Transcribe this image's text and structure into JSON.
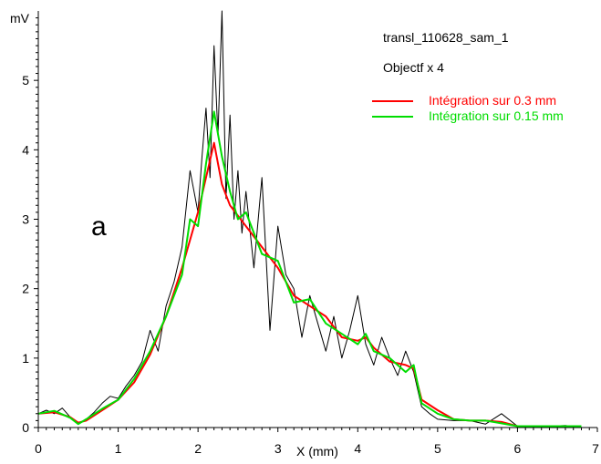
{
  "chart_data": {
    "type": "line",
    "title": "",
    "xlabel": "X (mm)",
    "ylabel": "mV",
    "xlim": [
      0,
      7
    ],
    "ylim": [
      0,
      6
    ],
    "x_ticks": [
      "0",
      "1",
      "2",
      "3",
      "4",
      "5",
      "6",
      "7"
    ],
    "y_ticks": [
      "0",
      "1",
      "2",
      "3",
      "4",
      "5"
    ],
    "grid": false,
    "legend_position": "top-right",
    "annotations": {
      "file_label": "transl_110628_sam_1",
      "objective_label": "Objectf x 4",
      "panel_letter": "a"
    },
    "colors": {
      "raw": "#000000",
      "smooth_03": "#ff0000",
      "smooth_015": "#00dd00",
      "axis": "#000000"
    },
    "series": [
      {
        "key": "raw",
        "color": "#000000",
        "x": [
          0.0,
          0.1,
          0.2,
          0.3,
          0.4,
          0.5,
          0.6,
          0.7,
          0.8,
          0.9,
          1.0,
          1.1,
          1.2,
          1.3,
          1.4,
          1.5,
          1.6,
          1.7,
          1.8,
          1.9,
          2.0,
          2.05,
          2.1,
          2.15,
          2.2,
          2.25,
          2.3,
          2.35,
          2.4,
          2.45,
          2.5,
          2.55,
          2.6,
          2.7,
          2.8,
          2.9,
          3.0,
          3.1,
          3.2,
          3.3,
          3.4,
          3.5,
          3.6,
          3.7,
          3.8,
          3.9,
          4.0,
          4.1,
          4.2,
          4.3,
          4.4,
          4.5,
          4.6,
          4.7,
          4.8,
          4.9,
          5.0,
          5.2,
          5.4,
          5.6,
          5.8,
          6.0,
          6.2,
          6.4,
          6.6,
          6.8
        ],
        "values": [
          0.2,
          0.25,
          0.2,
          0.28,
          0.15,
          0.05,
          0.12,
          0.22,
          0.35,
          0.45,
          0.42,
          0.6,
          0.75,
          0.95,
          1.4,
          1.1,
          1.75,
          2.1,
          2.6,
          3.7,
          3.1,
          3.9,
          4.6,
          3.6,
          5.5,
          4.2,
          6.0,
          3.3,
          4.5,
          3.0,
          3.7,
          2.8,
          3.4,
          2.3,
          3.6,
          1.4,
          2.9,
          2.2,
          2.0,
          1.3,
          1.9,
          1.5,
          1.1,
          1.6,
          1.0,
          1.4,
          1.9,
          1.2,
          0.9,
          1.3,
          1.0,
          0.75,
          1.1,
          0.8,
          0.3,
          0.2,
          0.12,
          0.1,
          0.1,
          0.05,
          0.2,
          0.02,
          0.02,
          0.02,
          0.03,
          0.0
        ]
      },
      {
        "name": "Intégration sur 0.3 mm",
        "key": "smooth_03",
        "color": "#ff0000",
        "x": [
          0.0,
          0.2,
          0.4,
          0.5,
          0.6,
          0.8,
          1.0,
          1.2,
          1.4,
          1.6,
          1.8,
          2.0,
          2.1,
          2.2,
          2.3,
          2.4,
          2.6,
          2.8,
          3.0,
          3.2,
          3.4,
          3.6,
          3.8,
          4.0,
          4.1,
          4.2,
          4.4,
          4.6,
          4.7,
          4.8,
          5.0,
          5.2,
          5.4,
          5.6,
          5.8,
          6.0,
          6.4,
          6.8
        ],
        "values": [
          0.2,
          0.22,
          0.15,
          0.07,
          0.1,
          0.25,
          0.4,
          0.65,
          1.05,
          1.6,
          2.3,
          3.1,
          3.6,
          4.1,
          3.5,
          3.2,
          2.9,
          2.6,
          2.3,
          1.9,
          1.75,
          1.6,
          1.3,
          1.25,
          1.3,
          1.15,
          0.95,
          0.9,
          0.85,
          0.4,
          0.25,
          0.12,
          0.1,
          0.1,
          0.08,
          0.02,
          0.02,
          0.02
        ]
      },
      {
        "name": "Intégration sur 0.15 mm",
        "key": "smooth_015",
        "color": "#00dd00",
        "x": [
          0.0,
          0.2,
          0.4,
          0.5,
          0.6,
          0.8,
          1.0,
          1.2,
          1.4,
          1.6,
          1.8,
          1.9,
          2.0,
          2.1,
          2.2,
          2.3,
          2.4,
          2.5,
          2.6,
          2.8,
          3.0,
          3.2,
          3.4,
          3.6,
          3.8,
          4.0,
          4.1,
          4.2,
          4.4,
          4.6,
          4.7,
          4.8,
          5.0,
          5.2,
          5.4,
          5.6,
          5.8,
          6.0,
          6.4,
          6.8
        ],
        "values": [
          0.2,
          0.24,
          0.14,
          0.05,
          0.12,
          0.27,
          0.4,
          0.7,
          1.1,
          1.6,
          2.2,
          3.0,
          2.9,
          3.8,
          4.55,
          3.9,
          3.4,
          3.0,
          3.1,
          2.5,
          2.4,
          1.8,
          1.85,
          1.5,
          1.35,
          1.2,
          1.35,
          1.1,
          1.0,
          0.8,
          0.9,
          0.35,
          0.2,
          0.12,
          0.1,
          0.1,
          0.06,
          0.02,
          0.02,
          0.02
        ]
      }
    ]
  }
}
